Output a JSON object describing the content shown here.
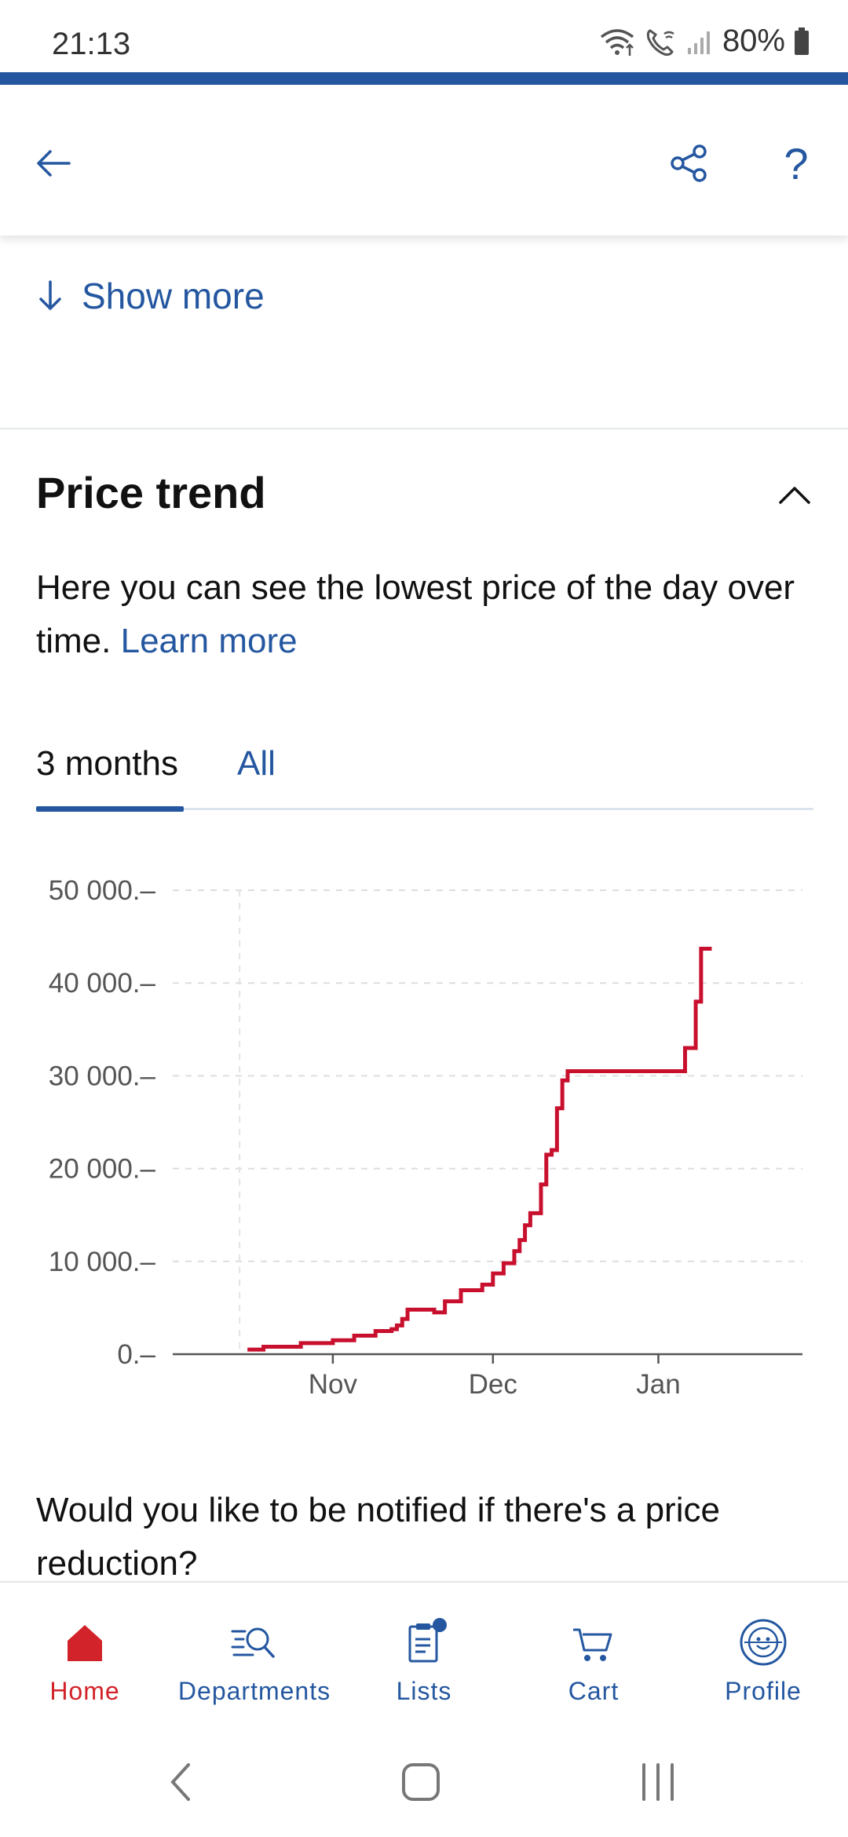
{
  "status_bar": {
    "time": "21:13",
    "battery": "80%"
  },
  "top_bar": {
    "back_icon": "arrow-left-icon",
    "share_icon": "share-icon",
    "help_icon": "question-mark-icon",
    "help_glyph": "?"
  },
  "show_more": {
    "label": "Show more",
    "icon": "arrow-down-icon"
  },
  "price_trend": {
    "title": "Price trend",
    "description": "Here you can see the lowest price of the day over time.",
    "learn_more": "Learn more",
    "tabs": [
      {
        "label": "3 months",
        "selected": true
      },
      {
        "label": "All",
        "selected": false
      }
    ]
  },
  "chart_data": {
    "type": "line",
    "step": true,
    "title": "",
    "xlabel": "",
    "ylabel": "",
    "ylim": [
      0,
      50000
    ],
    "y_ticks": [
      {
        "value": 0,
        "label": "0.–"
      },
      {
        "value": 10000,
        "label": "10 000.–"
      },
      {
        "value": 20000,
        "label": "20 000.–"
      },
      {
        "value": 30000,
        "label": "30 000.–"
      },
      {
        "value": 40000,
        "label": "40 000.–"
      },
      {
        "value": 50000,
        "label": "50 000.–"
      }
    ],
    "x_ticks": [
      {
        "value": "2023-11-01",
        "label": "Nov"
      },
      {
        "value": "2023-12-01",
        "label": "Dec"
      },
      {
        "value": "2024-01-01",
        "label": "Jan"
      }
    ],
    "xlim": [
      "2023-10-02",
      "2024-01-28"
    ],
    "line_color": "#c8102e",
    "grid": true,
    "series": [
      {
        "x": [
          "2023-10-16",
          "2023-10-19",
          "2023-10-26",
          "2023-11-01",
          "2023-11-05",
          "2023-11-09",
          "2023-11-12",
          "2023-11-13",
          "2023-11-14",
          "2023-11-15",
          "2023-11-20",
          "2023-11-22",
          "2023-11-25",
          "2023-11-29",
          "2023-12-01",
          "2023-12-03",
          "2023-12-05",
          "2023-12-06",
          "2023-12-07",
          "2023-12-08",
          "2023-12-10",
          "2023-12-11",
          "2023-12-12",
          "2023-12-13",
          "2023-12-14",
          "2023-12-15",
          "2023-12-17",
          "2024-01-06",
          "2024-01-08",
          "2024-01-09",
          "2024-01-11"
        ],
        "y": [
          500,
          800,
          1200,
          1500,
          2000,
          2500,
          2700,
          3100,
          3800,
          4800,
          4500,
          5700,
          6900,
          7500,
          8700,
          9800,
          11100,
          12300,
          13900,
          15200,
          18300,
          21500,
          22000,
          26500,
          29500,
          30500,
          30500,
          33000,
          38000,
          43700,
          43700
        ]
      }
    ]
  },
  "notify": {
    "text": "Would you like to be notified if there's a price reduction?"
  },
  "bottom_nav": {
    "items": [
      {
        "label": "Home",
        "icon": "home-icon",
        "active": true
      },
      {
        "label": "Departments",
        "icon": "departments-search-icon",
        "active": false
      },
      {
        "label": "Lists",
        "icon": "list-icon",
        "active": false,
        "badge": true
      },
      {
        "label": "Cart",
        "icon": "cart-icon",
        "active": false
      },
      {
        "label": "Profile",
        "icon": "profile-avatar-icon",
        "active": false
      }
    ]
  },
  "colors": {
    "brand_blue": "#2457a0",
    "accent_red": "#d2232a",
    "chart_line": "#c8102e"
  }
}
